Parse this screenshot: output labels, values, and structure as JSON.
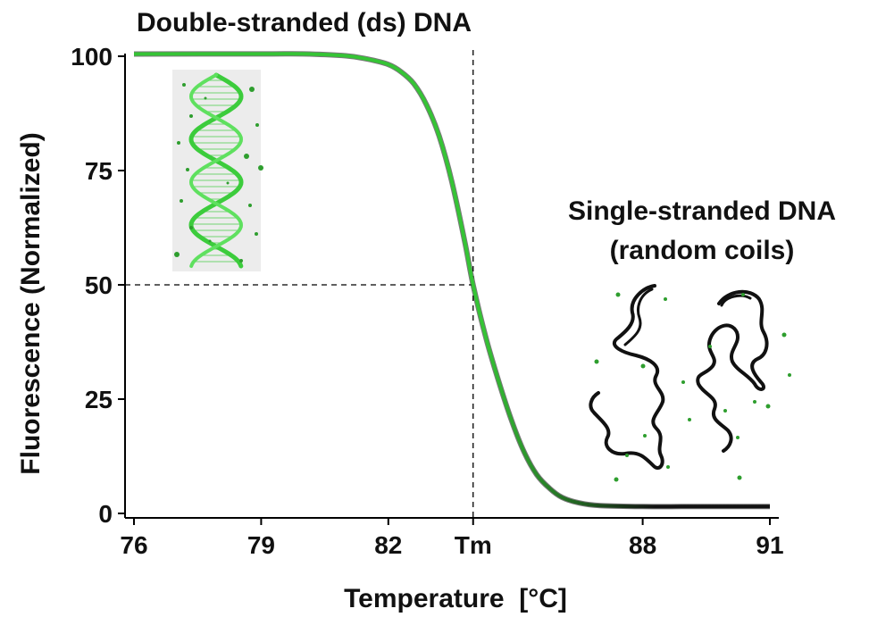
{
  "chart_data": {
    "type": "line",
    "title": "",
    "xlabel": "Temperature  [°C]",
    "ylabel": "Fluorescence (Normalized)",
    "xlim": [
      76,
      91
    ],
    "ylim": [
      0,
      100
    ],
    "x_ticks": [
      {
        "value": 76,
        "label": "76"
      },
      {
        "value": 79,
        "label": "79"
      },
      {
        "value": 82,
        "label": "82"
      },
      {
        "value": 84,
        "label": "Tm"
      },
      {
        "value": 88,
        "label": "88"
      },
      {
        "value": 91,
        "label": "91"
      }
    ],
    "y_ticks": [
      {
        "value": 0,
        "label": "0"
      },
      {
        "value": 25,
        "label": "25"
      },
      {
        "value": 50,
        "label": "50"
      },
      {
        "value": 75,
        "label": "75"
      },
      {
        "value": 100,
        "label": "100"
      }
    ],
    "grid": false,
    "tm": {
      "x": 84,
      "y": 50
    },
    "series": [
      {
        "name": "",
        "color_start": "#35c435",
        "color_end": "#111111",
        "x": [
          76,
          79,
          80,
          81,
          81.5,
          82,
          82.3,
          82.6,
          82.9,
          83.2,
          83.5,
          83.8,
          84,
          84.3,
          84.6,
          84.9,
          85.2,
          85.5,
          85.8,
          86.1,
          86.5,
          87,
          88,
          89,
          90,
          91
        ],
        "y": [
          100.5,
          100.5,
          100.5,
          100.1,
          99.4,
          98.2,
          96.6,
          94.0,
          89.4,
          82.5,
          72.5,
          59.6,
          50.0,
          38.5,
          29.0,
          20.5,
          13.5,
          8.5,
          5.5,
          3.5,
          2.3,
          1.7,
          1.5,
          1.5,
          1.5,
          1.5
        ]
      }
    ],
    "annotations": {
      "ds_label": "Double-stranded (ds) DNA",
      "ss_label_line1": "Single-stranded DNA",
      "ss_label_line2": "(random coils)"
    },
    "colors": {
      "curve_green": "#35c435",
      "curve_black": "#111111",
      "helix_green": "#3ccc3c",
      "helix_box": "#ececec",
      "dot_green": "#2e9e2e"
    }
  }
}
